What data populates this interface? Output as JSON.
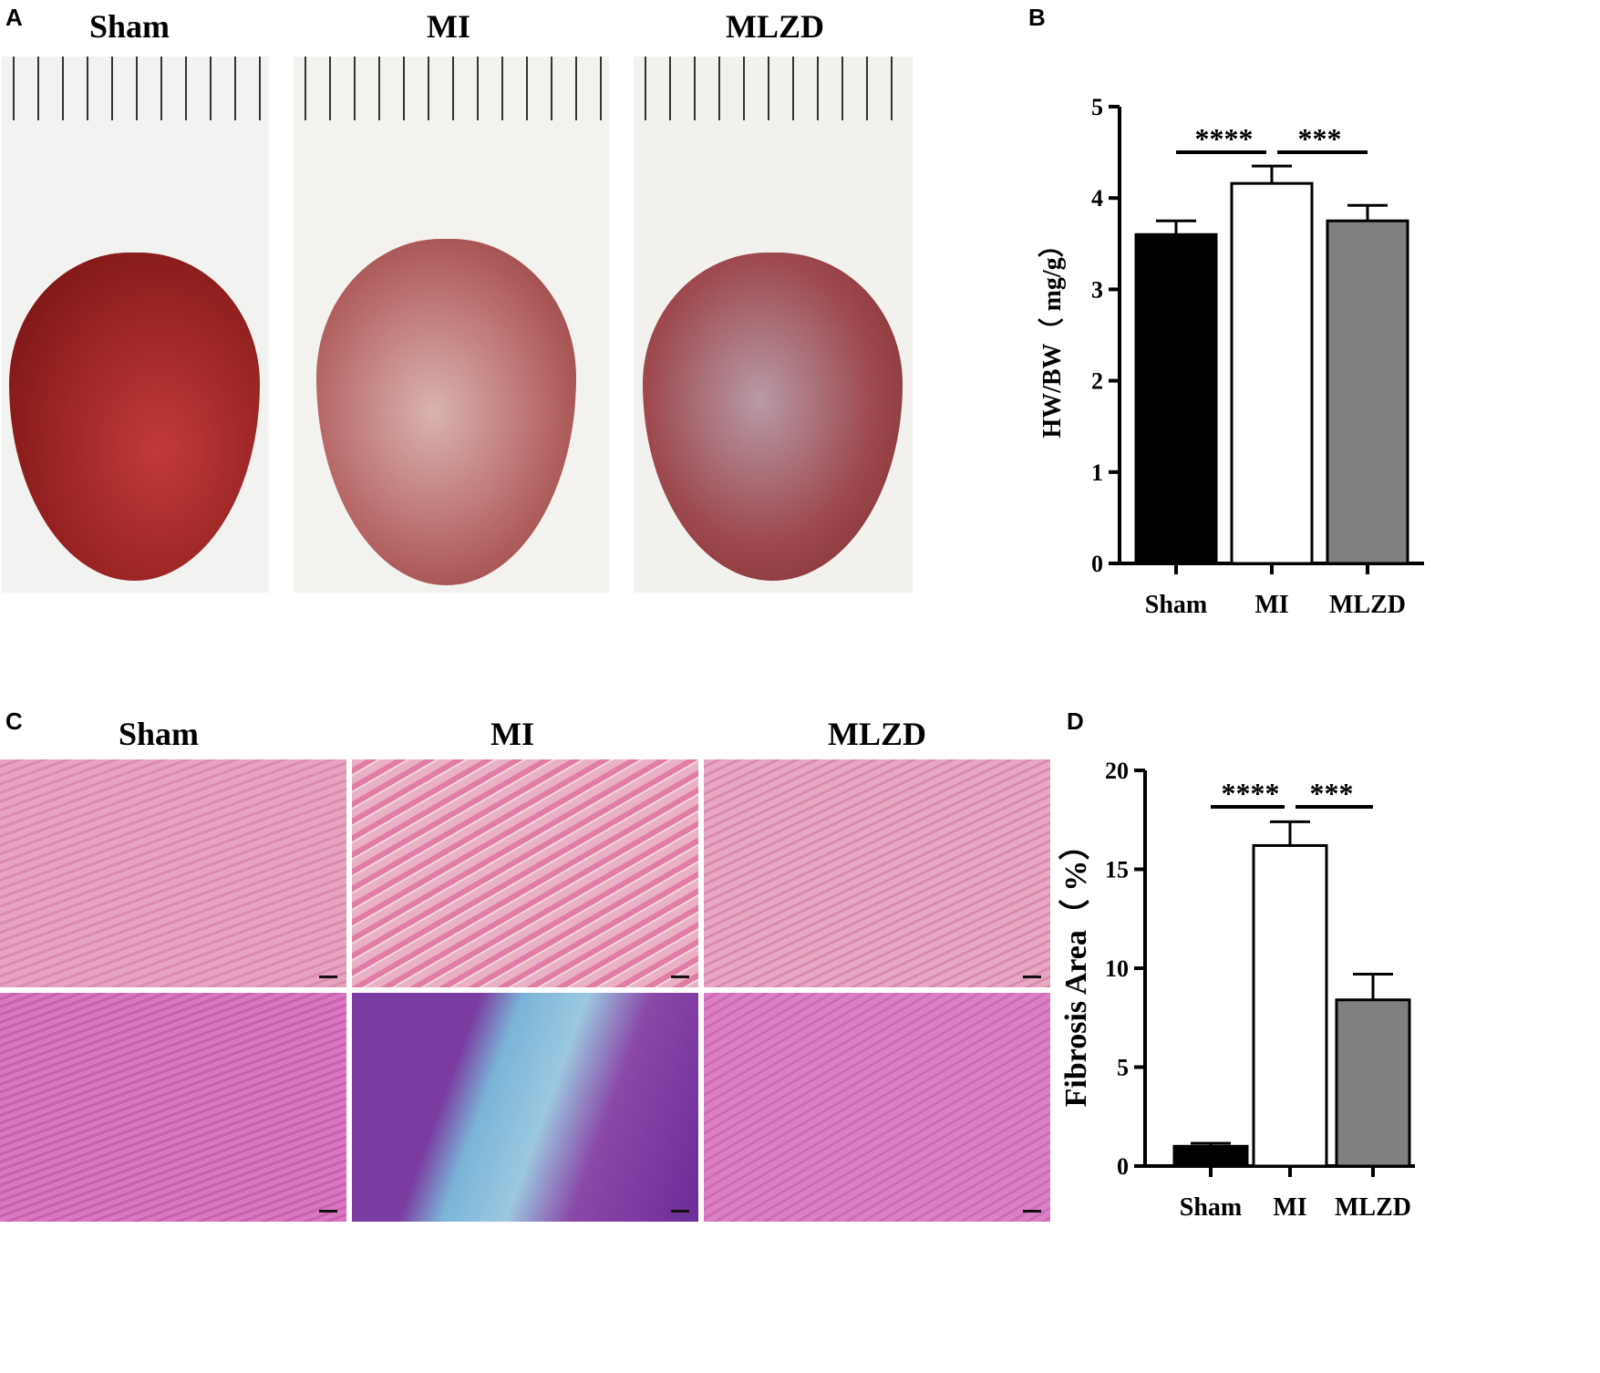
{
  "panels": {
    "a": "A",
    "b": "B",
    "c": "C",
    "d": "D"
  },
  "groups": [
    "Sham",
    "MI",
    "MLZD"
  ],
  "chart_data": [
    {
      "type": "bar",
      "panel": "B",
      "categories": [
        "Sham",
        "MI",
        "MLZD"
      ],
      "values": [
        3.6,
        4.16,
        3.75
      ],
      "errors": [
        0.15,
        0.19,
        0.17
      ],
      "ylabel": "HW/BW（ mg/g）",
      "ylim": [
        0,
        5
      ],
      "yticks": [
        0,
        1,
        2,
        3,
        4,
        5
      ],
      "colors": [
        "#000000",
        "#ffffff",
        "#808080"
      ],
      "significance": [
        {
          "from": "Sham",
          "to": "MI",
          "label": "****"
        },
        {
          "from": "MI",
          "to": "MLZD",
          "label": "***"
        }
      ]
    },
    {
      "type": "bar",
      "panel": "D",
      "categories": [
        "Sham",
        "MI",
        "MLZD"
      ],
      "values": [
        1.0,
        16.2,
        8.4
      ],
      "errors": [
        0.15,
        1.2,
        1.3
      ],
      "ylabel": "Fibrosis Area（ %）",
      "ylim": [
        0,
        20
      ],
      "yticks": [
        0,
        5,
        10,
        15,
        20
      ],
      "colors": [
        "#000000",
        "#ffffff",
        "#808080"
      ],
      "significance": [
        {
          "from": "Sham",
          "to": "MI",
          "label": "****"
        },
        {
          "from": "MI",
          "to": "MLZD",
          "label": "***"
        }
      ]
    }
  ]
}
